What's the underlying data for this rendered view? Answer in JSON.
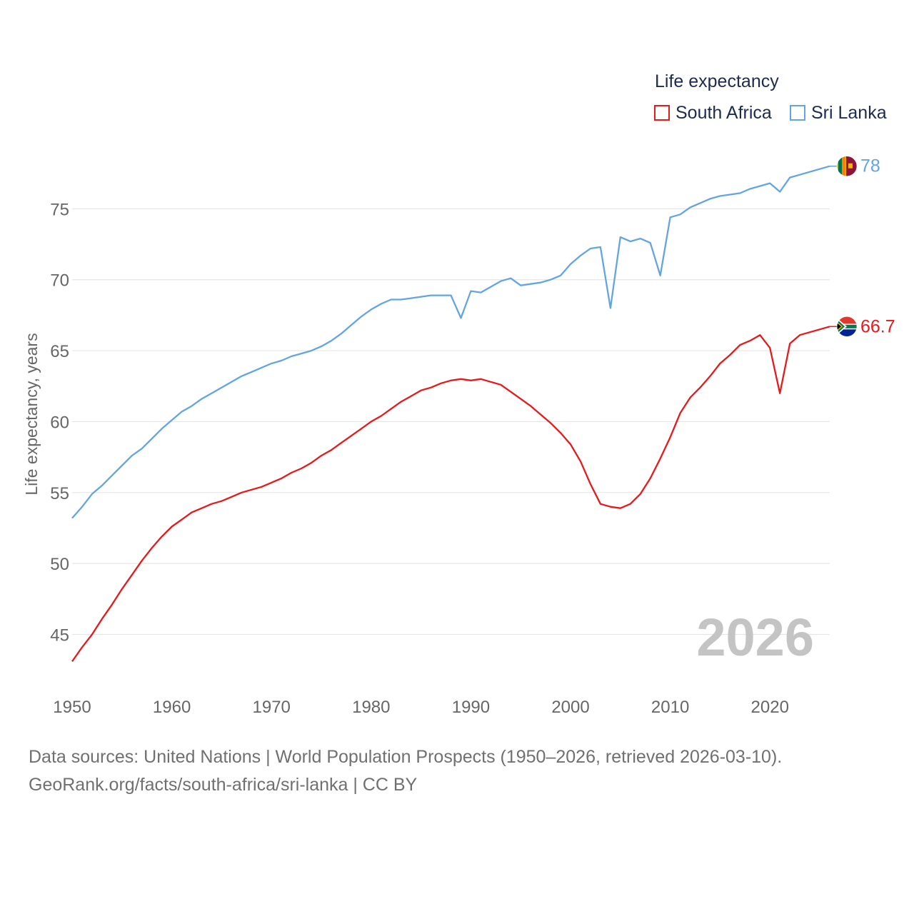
{
  "chart_data": {
    "type": "line",
    "title": "Life expectancy",
    "xlabel": "",
    "ylabel": "Life expectancy, years",
    "xlim": [
      1950,
      2026
    ],
    "ylim": [
      41,
      80
    ],
    "yticks": [
      45,
      50,
      55,
      60,
      65,
      70,
      75
    ],
    "xticks": [
      1950,
      1960,
      1970,
      1980,
      1990,
      2000,
      2010,
      2020
    ],
    "year_label": "2026",
    "x": [
      1950,
      1951,
      1952,
      1953,
      1954,
      1955,
      1956,
      1957,
      1958,
      1959,
      1960,
      1961,
      1962,
      1963,
      1964,
      1965,
      1966,
      1967,
      1968,
      1969,
      1970,
      1971,
      1972,
      1973,
      1974,
      1975,
      1976,
      1977,
      1978,
      1979,
      1980,
      1981,
      1982,
      1983,
      1984,
      1985,
      1986,
      1987,
      1988,
      1989,
      1990,
      1991,
      1992,
      1993,
      1994,
      1995,
      1996,
      1997,
      1998,
      1999,
      2000,
      2001,
      2002,
      2003,
      2004,
      2005,
      2006,
      2007,
      2008,
      2009,
      2010,
      2011,
      2012,
      2013,
      2014,
      2015,
      2016,
      2017,
      2018,
      2019,
      2020,
      2021,
      2022,
      2023,
      2024,
      2025,
      2026
    ],
    "series": [
      {
        "name": "South Africa",
        "color": "#e8191b",
        "end_label": "66.7",
        "flag": "south-africa-flag-icon",
        "values": [
          43.1,
          44.1,
          45.0,
          46.1,
          47.1,
          48.2,
          49.2,
          50.2,
          51.1,
          51.9,
          52.6,
          53.1,
          53.6,
          53.9,
          54.2,
          54.4,
          54.7,
          55.0,
          55.2,
          55.4,
          55.7,
          56.0,
          56.4,
          56.7,
          57.1,
          57.6,
          58.0,
          58.5,
          59.0,
          59.5,
          60.0,
          60.4,
          60.9,
          61.4,
          61.8,
          62.2,
          62.4,
          62.7,
          62.9,
          63.0,
          62.9,
          63.0,
          62.8,
          62.6,
          62.1,
          61.6,
          61.1,
          60.5,
          59.9,
          59.2,
          58.4,
          57.2,
          55.6,
          54.2,
          54.0,
          53.9,
          54.2,
          54.9,
          56.0,
          57.4,
          58.9,
          60.6,
          61.7,
          62.4,
          63.2,
          64.1,
          64.7,
          65.4,
          65.7,
          66.1,
          65.2,
          62.0,
          65.5,
          66.1,
          66.3,
          66.5,
          66.7
        ]
      },
      {
        "name": "Sri Lanka",
        "color": "#63a5e3",
        "end_label": "78",
        "flag": "sri-lanka-flag-icon",
        "values": [
          53.2,
          54.0,
          54.9,
          55.5,
          56.2,
          56.9,
          57.6,
          58.1,
          58.8,
          59.5,
          60.1,
          60.7,
          61.1,
          61.6,
          62.0,
          62.4,
          62.8,
          63.2,
          63.5,
          63.8,
          64.1,
          64.3,
          64.6,
          64.8,
          65.0,
          65.3,
          65.7,
          66.2,
          66.8,
          67.4,
          67.9,
          68.3,
          68.6,
          68.6,
          68.7,
          68.8,
          68.9,
          68.9,
          68.9,
          67.3,
          69.2,
          69.1,
          69.5,
          69.9,
          70.1,
          69.6,
          69.7,
          69.8,
          70.0,
          70.3,
          71.1,
          71.7,
          72.2,
          72.3,
          68.0,
          73.0,
          72.7,
          72.9,
          72.6,
          70.3,
          74.4,
          74.6,
          75.1,
          75.4,
          75.7,
          75.9,
          76.0,
          76.1,
          76.4,
          76.6,
          76.8,
          76.2,
          77.2,
          77.4,
          77.6,
          77.8,
          78.0
        ]
      }
    ]
  },
  "legend": {
    "title": "Life expectancy",
    "items": [
      "South Africa",
      "Sri Lanka"
    ]
  },
  "source": {
    "line1": "Data sources: United Nations | World Population Prospects (1950–2026, retrieved 2026-03-10).",
    "line2": "GeoRank.org/facts/south-africa/sri-lanka | CC BY"
  }
}
